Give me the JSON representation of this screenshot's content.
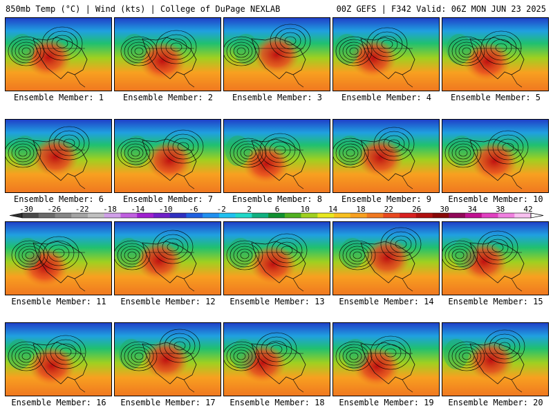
{
  "header": {
    "left": "850mb Temp (°C) | Wind (kts) | College of DuPage NEXLAB",
    "right": "00Z GEFS | F342 Valid: 06Z MON JUN 23 2025"
  },
  "member_label_prefix": "Ensemble Member: ",
  "members": [
    1,
    2,
    3,
    4,
    5,
    6,
    7,
    8,
    9,
    10,
    11,
    12,
    13,
    14,
    15,
    16,
    17,
    18,
    19,
    20
  ],
  "colorbar": {
    "tick_labels": [
      "-30",
      "-26",
      "-22",
      "-18",
      "-14",
      "-10",
      "-6",
      "-2",
      "2",
      "6",
      "10",
      "14",
      "18",
      "22",
      "26",
      "30",
      "34",
      "38",
      "42"
    ],
    "colors": [
      "#4a4a4a",
      "#6a6a6a",
      "#868686",
      "#a4a4a4",
      "#c0c0c0",
      "#d0a0e8",
      "#c060e0",
      "#a020d0",
      "#7020c8",
      "#3030c0",
      "#2060e0",
      "#2090f0",
      "#20c0f0",
      "#20d8c8",
      "#10b080",
      "#109030",
      "#50b020",
      "#a0d020",
      "#e8e820",
      "#f8c020",
      "#f8a020",
      "#f07820",
      "#e84820",
      "#d82020",
      "#b01010",
      "#880808",
      "#900858",
      "#c01090",
      "#e040c0",
      "#f080e0",
      "#f8c0f0"
    ]
  }
}
